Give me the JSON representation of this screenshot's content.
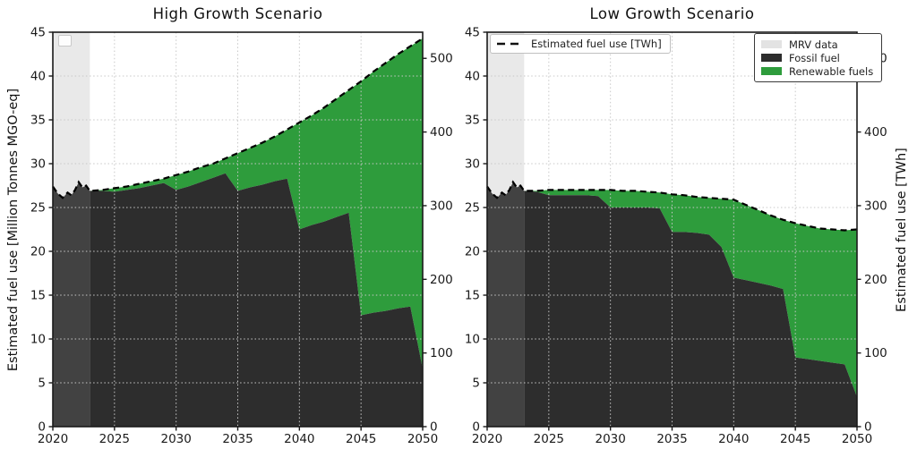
{
  "figure_title": "",
  "legends": {
    "line_legend": {
      "label": "Estimated fuel use [TWh]"
    },
    "fill_legend": {
      "items": [
        {
          "label": "MRV data",
          "color": "#e3e3e3"
        },
        {
          "label": "Fossil fuel",
          "color": "#2d2d2d"
        },
        {
          "label": "Renewable fuels",
          "color": "#2e9c3c"
        }
      ]
    }
  },
  "chart_data": [
    {
      "type": "area",
      "title": "High Growth Scenario",
      "xlabel": "",
      "ylabel_left": "Estimated fuel use [Million Tonnes MGO-eq]",
      "ylabel_right": "",
      "xlim": [
        2020,
        2050
      ],
      "ylim_left": [
        0,
        45
      ],
      "ylim_right_twh": [
        0,
        535
      ],
      "xticks": [
        2020,
        2025,
        2030,
        2035,
        2040,
        2045,
        2050
      ],
      "yticks_left": [
        0,
        5,
        10,
        15,
        20,
        25,
        30,
        35,
        40,
        45
      ],
      "yticks_right_twh": [
        0,
        100,
        200,
        300,
        400,
        500
      ],
      "grid": true,
      "legend_position": "none",
      "mrv_band": {
        "from": 2020,
        "to": 2023,
        "band_color": "#e9e9e9",
        "fossil_in_band_color": "#424242"
      },
      "x": [
        2020,
        2020.4,
        2020.8,
        2021.2,
        2021.5,
        2021.8,
        2022.1,
        2022.4,
        2022.7,
        2023,
        2024,
        2025,
        2026,
        2027,
        2028,
        2029,
        2030,
        2031,
        2032,
        2033,
        2034,
        2035,
        2036,
        2037,
        2038,
        2039,
        2040,
        2041,
        2042,
        2043,
        2044,
        2045,
        2046,
        2047,
        2048,
        2049,
        2050
      ],
      "series": [
        {
          "name": "Estimated fuel use [TWh]",
          "type": "dashed_line",
          "color": "#000000",
          "values": [
            27.4,
            26.6,
            26.1,
            26.7,
            26.4,
            27.0,
            27.9,
            27.3,
            27.5,
            26.9,
            27.0,
            27.2,
            27.4,
            27.7,
            28.0,
            28.3,
            28.7,
            29.1,
            29.6,
            30.0,
            30.6,
            31.2,
            31.8,
            32.4,
            33.1,
            33.9,
            34.7,
            35.5,
            36.4,
            37.4,
            38.4,
            39.4,
            40.5,
            41.5,
            42.5,
            43.4,
            44.3
          ]
        },
        {
          "name": "Fossil fuel",
          "type": "stacked_area",
          "color": "#2d2d2d",
          "values": [
            27.4,
            26.6,
            26.1,
            26.7,
            26.4,
            27.0,
            27.9,
            27.3,
            27.5,
            26.9,
            26.9,
            26.8,
            27.0,
            27.2,
            27.5,
            27.8,
            27.0,
            27.4,
            27.9,
            28.4,
            28.9,
            26.9,
            27.3,
            27.6,
            28.0,
            28.3,
            22.5,
            23.0,
            23.4,
            23.9,
            24.4,
            12.7,
            13.0,
            13.2,
            13.5,
            13.7,
            6.6
          ]
        },
        {
          "name": "Renewable fuels",
          "type": "stacked_area",
          "color": "#2e9c3c",
          "values": [
            0,
            0,
            0,
            0,
            0,
            0,
            0,
            0,
            0,
            0,
            0.1,
            0.4,
            0.4,
            0.5,
            0.5,
            0.5,
            1.7,
            1.7,
            1.7,
            1.6,
            1.7,
            4.3,
            4.5,
            4.8,
            5.1,
            5.6,
            12.2,
            12.5,
            13.0,
            13.5,
            14.0,
            26.7,
            27.5,
            28.3,
            29.0,
            29.7,
            37.7
          ]
        }
      ]
    },
    {
      "type": "area",
      "title": "Low Growth Scenario",
      "xlabel": "",
      "ylabel_left": "",
      "ylabel_right": "Estimated fuel use [TWh]",
      "xlim": [
        2020,
        2050
      ],
      "ylim_left": [
        0,
        45
      ],
      "ylim_right_twh": [
        0,
        535
      ],
      "xticks": [
        2020,
        2025,
        2030,
        2035,
        2040,
        2045,
        2050
      ],
      "yticks_left": [
        0,
        5,
        10,
        15,
        20,
        25,
        30,
        35,
        40,
        45
      ],
      "yticks_right_twh": [
        0,
        100,
        200,
        300,
        400,
        500
      ],
      "grid": true,
      "legend_position": "upper-left and upper-right",
      "mrv_band": {
        "from": 2020,
        "to": 2023,
        "band_color": "#e9e9e9",
        "fossil_in_band_color": "#424242"
      },
      "x": [
        2020,
        2020.4,
        2020.8,
        2021.2,
        2021.5,
        2021.8,
        2022.1,
        2022.4,
        2022.7,
        2023,
        2024,
        2025,
        2026,
        2027,
        2028,
        2029,
        2030,
        2031,
        2032,
        2033,
        2034,
        2035,
        2036,
        2037,
        2038,
        2039,
        2040,
        2041,
        2042,
        2043,
        2044,
        2045,
        2046,
        2047,
        2048,
        2049,
        2050
      ],
      "series": [
        {
          "name": "Estimated fuel use [TWh]",
          "type": "dashed_line",
          "color": "#000000",
          "values": [
            27.4,
            26.6,
            26.1,
            26.7,
            26.4,
            27.0,
            27.9,
            27.3,
            27.5,
            26.9,
            26.9,
            27.0,
            27.0,
            27.0,
            27.0,
            27.0,
            27.0,
            26.9,
            26.9,
            26.8,
            26.7,
            26.5,
            26.4,
            26.2,
            26.1,
            26.0,
            25.9,
            25.3,
            24.7,
            24.1,
            23.6,
            23.2,
            22.9,
            22.6,
            22.5,
            22.4,
            22.5
          ]
        },
        {
          "name": "Fossil fuel",
          "type": "stacked_area",
          "color": "#2d2d2d",
          "values": [
            27.4,
            26.6,
            26.1,
            26.7,
            26.4,
            27.0,
            27.9,
            27.3,
            27.5,
            26.9,
            26.8,
            26.4,
            26.4,
            26.4,
            26.4,
            26.3,
            25.0,
            25.0,
            25.0,
            25.0,
            24.9,
            22.2,
            22.2,
            22.1,
            21.9,
            20.5,
            17.0,
            16.7,
            16.4,
            16.1,
            15.7,
            7.9,
            7.7,
            7.5,
            7.3,
            7.1,
            3.4
          ]
        },
        {
          "name": "Renewable fuels",
          "type": "stacked_area",
          "color": "#2e9c3c",
          "values": [
            0,
            0,
            0,
            0,
            0,
            0,
            0,
            0,
            0,
            0,
            0.1,
            0.6,
            0.6,
            0.6,
            0.6,
            0.7,
            2.0,
            1.9,
            1.9,
            1.8,
            1.8,
            4.3,
            4.2,
            4.1,
            4.2,
            5.5,
            8.9,
            8.6,
            8.3,
            8.0,
            7.9,
            15.3,
            15.2,
            15.1,
            15.2,
            15.3,
            19.1
          ]
        }
      ]
    }
  ]
}
